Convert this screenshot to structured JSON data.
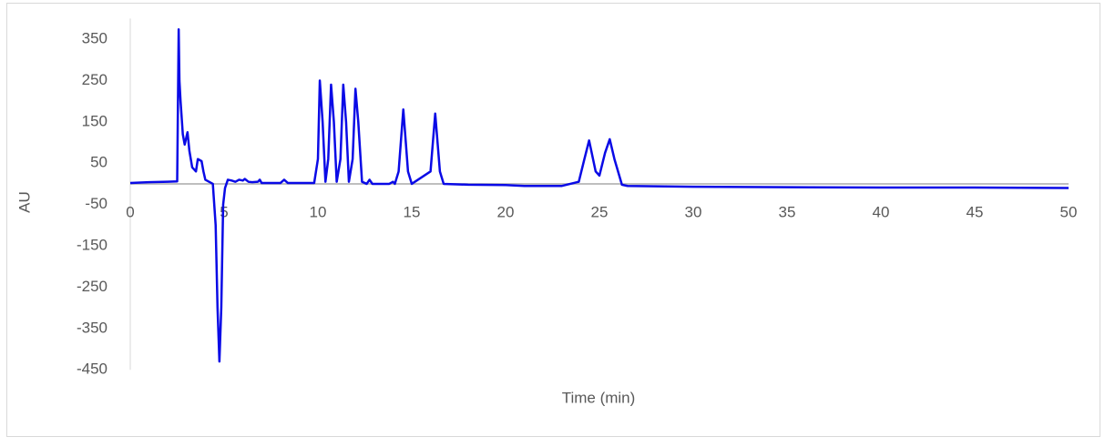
{
  "chart_data": {
    "type": "line",
    "x_label": "Time (min)",
    "y_label": "AU",
    "xlim": [
      0,
      50
    ],
    "xticks": [
      0,
      5,
      10,
      15,
      20,
      25,
      30,
      35,
      40,
      45,
      50
    ],
    "ylim": [
      -450,
      400
    ],
    "yticks": [
      -450,
      -350,
      -250,
      -150,
      -50,
      50,
      150,
      250,
      350
    ],
    "series": [
      {
        "color": "#0a0ae6",
        "x": [
          0,
          1,
          2,
          2.5,
          2.58,
          2.62,
          2.68,
          2.8,
          2.9,
          3.05,
          3.15,
          3.3,
          3.5,
          3.6,
          3.8,
          3.9,
          4.0,
          4.2,
          4.4,
          4.55,
          4.65,
          4.75,
          4.85,
          4.95,
          5.05,
          5.2,
          5.4,
          5.6,
          5.8,
          6.0,
          6.1,
          6.3,
          6.5,
          6.8,
          6.9,
          7.0,
          8.0,
          8.2,
          8.4,
          9.8,
          10.0,
          10.1,
          10.25,
          10.4,
          10.55,
          10.7,
          10.85,
          11.0,
          11.2,
          11.35,
          11.5,
          11.65,
          11.85,
          12.0,
          12.15,
          12.35,
          12.6,
          12.75,
          12.9,
          13.8,
          14.0,
          14.1,
          14.3,
          14.55,
          14.8,
          15.0,
          16.0,
          16.25,
          16.5,
          16.7,
          18,
          20,
          21,
          23,
          23.9,
          24.2,
          24.45,
          24.8,
          25.0,
          25.3,
          25.55,
          25.8,
          26.2,
          26.5,
          30,
          35,
          40,
          45,
          50
        ],
        "values": [
          2,
          4,
          5,
          6,
          374,
          250,
          200,
          120,
          95,
          125,
          80,
          40,
          30,
          60,
          55,
          30,
          10,
          5,
          0,
          -100,
          -300,
          -430,
          -300,
          -50,
          -10,
          10,
          8,
          5,
          10,
          8,
          12,
          5,
          4,
          5,
          10,
          2,
          2,
          10,
          2,
          2,
          60,
          250,
          150,
          5,
          60,
          240,
          150,
          5,
          60,
          240,
          150,
          5,
          60,
          230,
          150,
          5,
          0,
          10,
          0,
          0,
          5,
          0,
          30,
          180,
          30,
          0,
          30,
          170,
          30,
          0,
          -2,
          -3,
          -5,
          -5,
          5,
          60,
          105,
          30,
          20,
          75,
          108,
          60,
          -2,
          -5,
          -7,
          -8,
          -9,
          -9,
          -10
        ]
      }
    ]
  }
}
